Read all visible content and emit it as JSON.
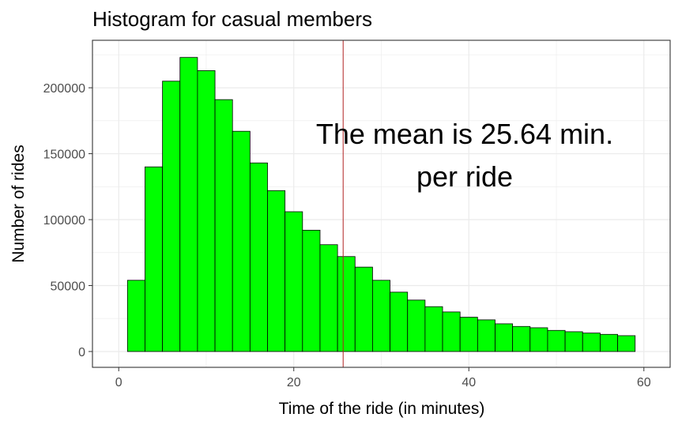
{
  "chart_data": {
    "type": "bar",
    "title": "Histogram for casual members",
    "xlabel": "Time of the ride (in minutes)",
    "ylabel": "Number of rides",
    "xlim": [
      -3,
      63
    ],
    "ylim": [
      -12000,
      236000
    ],
    "x_ticks": [
      0,
      20,
      40,
      60
    ],
    "y_ticks": [
      0,
      50000,
      100000,
      150000,
      200000
    ],
    "x_tick_labels": [
      "0",
      "20",
      "40",
      "60"
    ],
    "y_tick_labels": [
      "0",
      "50000",
      "100000",
      "150000",
      "200000"
    ],
    "bin_width": 2,
    "bins": [
      {
        "x": 2,
        "value": 54000
      },
      {
        "x": 4,
        "value": 140000
      },
      {
        "x": 6,
        "value": 205000
      },
      {
        "x": 8,
        "value": 223000
      },
      {
        "x": 10,
        "value": 213000
      },
      {
        "x": 12,
        "value": 191000
      },
      {
        "x": 14,
        "value": 167000
      },
      {
        "x": 16,
        "value": 143000
      },
      {
        "x": 18,
        "value": 122000
      },
      {
        "x": 20,
        "value": 106000
      },
      {
        "x": 22,
        "value": 92000
      },
      {
        "x": 24,
        "value": 81000
      },
      {
        "x": 26,
        "value": 72000
      },
      {
        "x": 28,
        "value": 64000
      },
      {
        "x": 30,
        "value": 54000
      },
      {
        "x": 32,
        "value": 45000
      },
      {
        "x": 34,
        "value": 39000
      },
      {
        "x": 36,
        "value": 34000
      },
      {
        "x": 38,
        "value": 30000
      },
      {
        "x": 40,
        "value": 26000
      },
      {
        "x": 42,
        "value": 24000
      },
      {
        "x": 44,
        "value": 21000
      },
      {
        "x": 46,
        "value": 19000
      },
      {
        "x": 48,
        "value": 18000
      },
      {
        "x": 50,
        "value": 16000
      },
      {
        "x": 52,
        "value": 15000
      },
      {
        "x": 54,
        "value": 14000
      },
      {
        "x": 56,
        "value": 13000
      },
      {
        "x": 58,
        "value": 12000
      }
    ],
    "mean_line": 25.64,
    "annotation": [
      "The mean is 25.64 min.",
      "per ride"
    ],
    "grid": true,
    "legend": "none",
    "colors": {
      "bar_fill": "#00ff00",
      "bar_stroke": "#000000",
      "mean_line": "#b22222",
      "grid": "#ebebeb",
      "panel_border": "#333333"
    }
  }
}
